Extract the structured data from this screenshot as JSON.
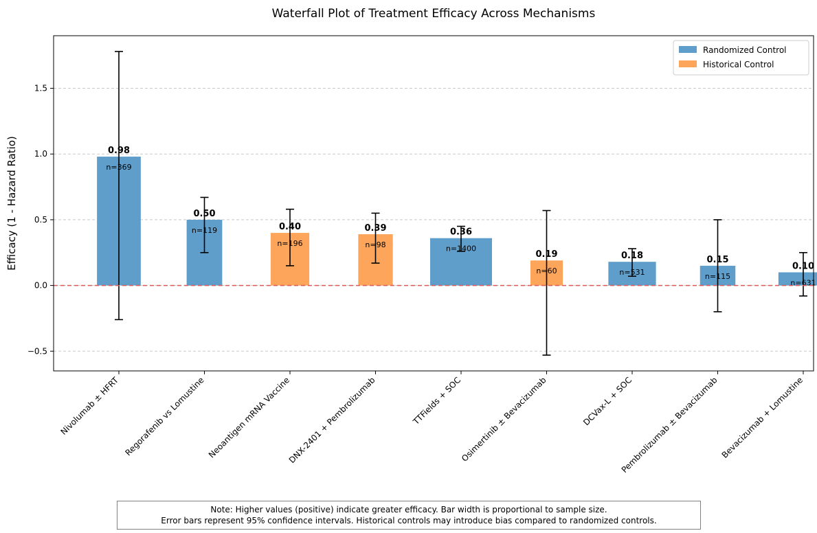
{
  "chart_data": {
    "type": "bar",
    "title": "Waterfall Plot of Treatment Efficacy Across Mechanisms",
    "xlabel": "",
    "ylabel": "Efficacy (1 - Hazard Ratio)",
    "ylim": [
      -0.65,
      1.9
    ],
    "yticks": [
      -0.5,
      0.0,
      0.5,
      1.0,
      1.5
    ],
    "ytick_labels": [
      "−0.5",
      "0.0",
      "0.5",
      "1.0",
      "1.5"
    ],
    "grid": "y-dashed",
    "reference_line": 0,
    "legend_position": "top-right",
    "legend": [
      {
        "label": "Randomized Control",
        "color": "#5f9ecb"
      },
      {
        "label": "Historical Control",
        "color": "#fda55a"
      }
    ],
    "categories": [
      "Nivolumab ± HFRT",
      "Regorafenib vs Lomustine",
      "Neoantigen mRNA Vaccine",
      "DNX-2401 + Pembrolizumab",
      "TTFields + SOC",
      "Osimertinib ± Bevacizumab",
      "DCVax-L + SOC",
      "Pembrolizumab ± Bevacizumab",
      "Bevacizumab + Lomustine"
    ],
    "values": [
      0.98,
      0.5,
      0.4,
      0.39,
      0.36,
      0.19,
      0.18,
      0.15,
      0.1
    ],
    "value_labels": [
      "0.98",
      "0.50",
      "0.40",
      "0.39",
      "0.36",
      "0.19",
      "0.18",
      "0.15",
      "0.10"
    ],
    "n": [
      369,
      119,
      196,
      98,
      1400,
      60,
      531,
      115,
      631
    ],
    "n_labels": [
      "n=369",
      "n=119",
      "n=196",
      "n=98",
      "n=1400",
      "n=60",
      "n=531",
      "n=115",
      "n=631"
    ],
    "control": [
      "Randomized Control",
      "Randomized Control",
      "Historical Control",
      "Historical Control",
      "Randomized Control",
      "Historical Control",
      "Randomized Control",
      "Randomized Control",
      "Randomized Control"
    ],
    "ci_low": [
      -0.26,
      0.25,
      0.15,
      0.17,
      0.26,
      -0.53,
      0.07,
      -0.2,
      -0.08
    ],
    "ci_high": [
      1.78,
      0.67,
      0.58,
      0.55,
      0.45,
      0.57,
      0.28,
      0.5,
      0.25
    ]
  },
  "note": {
    "line1": "Note: Higher values (positive) indicate greater efficacy. Bar width is proportional to sample size.",
    "line2": "Error bars represent 95% confidence intervals. Historical controls may introduce bias compared to randomized controls."
  }
}
